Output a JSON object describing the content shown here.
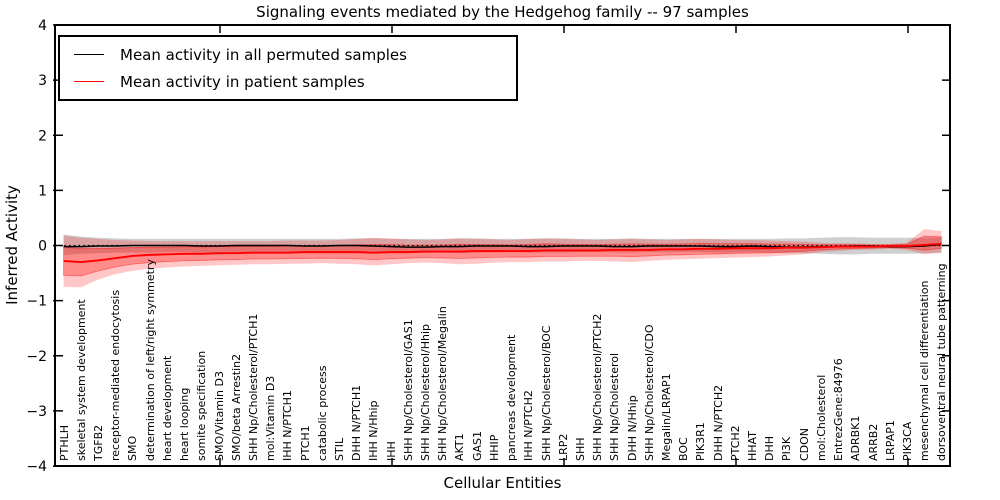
{
  "chart_data": {
    "type": "line",
    "title": "Signaling events mediated by the Hedgehog family -- 97 samples",
    "xlabel": "Cellular Entities",
    "ylabel": "Inferred Activity",
    "ylim": [
      -4,
      4
    ],
    "yticks": [
      4,
      3,
      2,
      1,
      0,
      -1,
      -2,
      -3,
      -4
    ],
    "grid": false,
    "legend_position": "upper left",
    "zero_line": {
      "style": "dotted",
      "color": "#000000",
      "y": 0
    },
    "sample_count": "97 samples",
    "categories": [
      "PTHLH",
      "skeletal system development",
      "TGFB2",
      "receptor-mediated endocytosis",
      "SMO",
      "determination of left/right symmetry",
      "heart development",
      "heart looping",
      "somite specification",
      "SMO/Vitamin D3",
      "SMO/beta Arrestin2",
      "SHH Np/Cholesterol/PTCH1",
      "mol:Vitamin D3",
      "IHH N/PTCH1",
      "PTCH1",
      "catabolic process",
      "STIL",
      "DHH N/PTCH1",
      "IHH N/Hhip",
      "IHH",
      "SHH Np/Cholesterol/GAS1",
      "SHH Np/Cholesterol/Hhip",
      "SHH Np/Cholesterol/Megalin",
      "AKT1",
      "GAS1",
      "HHIP",
      "pancreas development",
      "IHH N/PTCH2",
      "SHH Np/Cholesterol/BOC",
      "LRP2",
      "SHH",
      "SHH Np/Cholesterol/PTCH2",
      "SHH Np/Cholesterol",
      "DHH N/Hhip",
      "SHH Np/Cholesterol/CDO",
      "Megalin/LRPAP1",
      "BOC",
      "PIK3R1",
      "DHH N/PTCH2",
      "PTCH2",
      "HHAT",
      "DHH",
      "PI3K",
      "CDON",
      "mol:Cholesterol",
      "EntrezGene:84976",
      "ADRBK1",
      "ARRB2",
      "LRPAP1",
      "PIK3CA",
      "mesenchymal cell differentiation",
      "dorsoventral neural tube patterning"
    ],
    "series": [
      {
        "name": "Mean activity in all permuted samples",
        "color": "#000000",
        "band_color": "#808080",
        "values": [
          -0.02,
          -0.02,
          -0.01,
          -0.01,
          0,
          0,
          0,
          0,
          -0.01,
          -0.01,
          0,
          0,
          0,
          0,
          -0.01,
          -0.01,
          0,
          0,
          -0.01,
          -0.02,
          -0.03,
          -0.03,
          -0.02,
          -0.02,
          -0.01,
          -0.01,
          -0.01,
          -0.02,
          -0.02,
          -0.01,
          -0.01,
          -0.01,
          -0.02,
          -0.02,
          -0.01,
          -0.01,
          -0.01,
          -0.01,
          -0.02,
          -0.02,
          -0.01,
          -0.02,
          -0.03,
          -0.03,
          -0.02,
          -0.02,
          -0.01,
          -0.01,
          -0.02,
          -0.02,
          -0.01,
          0.02
        ],
        "band_upper": [
          0.2,
          0.16,
          0.14,
          0.13,
          0.12,
          0.12,
          0.12,
          0.12,
          0.12,
          0.12,
          0.12,
          0.12,
          0.12,
          0.12,
          0.12,
          0.12,
          0.12,
          0.13,
          0.13,
          0.12,
          0.12,
          0.12,
          0.12,
          0.13,
          0.13,
          0.12,
          0.12,
          0.12,
          0.13,
          0.13,
          0.12,
          0.12,
          0.12,
          0.13,
          0.12,
          0.12,
          0.12,
          0.12,
          0.12,
          0.12,
          0.12,
          0.12,
          0.13,
          0.13,
          0.14,
          0.15,
          0.15,
          0.14,
          0.14,
          0.14,
          0.14,
          0.15
        ],
        "band_lower": [
          -0.18,
          -0.15,
          -0.14,
          -0.13,
          -0.13,
          -0.13,
          -0.12,
          -0.12,
          -0.13,
          -0.13,
          -0.12,
          -0.12,
          -0.12,
          -0.12,
          -0.13,
          -0.13,
          -0.12,
          -0.13,
          -0.14,
          -0.13,
          -0.13,
          -0.13,
          -0.13,
          -0.14,
          -0.13,
          -0.13,
          -0.12,
          -0.13,
          -0.13,
          -0.13,
          -0.12,
          -0.12,
          -0.13,
          -0.13,
          -0.12,
          -0.12,
          -0.12,
          -0.12,
          -0.13,
          -0.13,
          -0.12,
          -0.13,
          -0.14,
          -0.14,
          -0.15,
          -0.16,
          -0.16,
          -0.15,
          -0.15,
          -0.15,
          -0.14,
          -0.14
        ]
      },
      {
        "name": "Mean activity in patient samples",
        "color": "#ff0000",
        "band_color": "#ff0000",
        "values": [
          -0.28,
          -0.3,
          -0.27,
          -0.23,
          -0.19,
          -0.17,
          -0.16,
          -0.15,
          -0.15,
          -0.14,
          -0.14,
          -0.13,
          -0.13,
          -0.13,
          -0.12,
          -0.12,
          -0.12,
          -0.12,
          -0.13,
          -0.12,
          -0.12,
          -0.11,
          -0.11,
          -0.11,
          -0.1,
          -0.1,
          -0.1,
          -0.1,
          -0.09,
          -0.09,
          -0.09,
          -0.09,
          -0.08,
          -0.08,
          -0.08,
          -0.07,
          -0.07,
          -0.06,
          -0.06,
          -0.05,
          -0.05,
          -0.05,
          -0.04,
          -0.04,
          -0.03,
          -0.02,
          -0.02,
          -0.02,
          -0.01,
          -0.01,
          0.01,
          0.03
        ],
        "band_upper": [
          0.18,
          0.14,
          0.12,
          0.1,
          0.09,
          0.08,
          0.08,
          0.08,
          0.08,
          0.08,
          0.08,
          0.08,
          0.08,
          0.09,
          0.09,
          0.09,
          0.1,
          0.12,
          0.14,
          0.13,
          0.11,
          0.1,
          0.11,
          0.13,
          0.12,
          0.11,
          0.1,
          0.12,
          0.13,
          0.12,
          0.11,
          0.1,
          0.11,
          0.12,
          0.11,
          0.1,
          0.11,
          0.12,
          0.11,
          0.1,
          0.1,
          0.09,
          0.08,
          0.07,
          0.05,
          0.04,
          0.04,
          0.03,
          0.03,
          0.05,
          0.3,
          0.26
        ],
        "band_lower": [
          -0.75,
          -0.76,
          -0.62,
          -0.52,
          -0.46,
          -0.42,
          -0.4,
          -0.38,
          -0.37,
          -0.36,
          -0.35,
          -0.34,
          -0.34,
          -0.33,
          -0.33,
          -0.32,
          -0.33,
          -0.34,
          -0.36,
          -0.34,
          -0.32,
          -0.31,
          -0.32,
          -0.34,
          -0.33,
          -0.31,
          -0.3,
          -0.3,
          -0.29,
          -0.29,
          -0.28,
          -0.28,
          -0.29,
          -0.3,
          -0.28,
          -0.26,
          -0.25,
          -0.24,
          -0.23,
          -0.22,
          -0.21,
          -0.2,
          -0.18,
          -0.16,
          -0.12,
          -0.1,
          -0.08,
          -0.07,
          -0.06,
          -0.08,
          -0.16,
          -0.12
        ]
      }
    ]
  }
}
